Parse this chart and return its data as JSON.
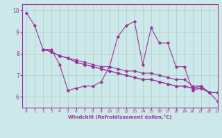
{
  "xlabel": "Windchill (Refroidissement éolien,°C)",
  "xlim": [
    -0.5,
    23
  ],
  "ylim": [
    5.5,
    10.3
  ],
  "xticks": [
    0,
    1,
    2,
    3,
    4,
    5,
    6,
    7,
    8,
    9,
    10,
    11,
    12,
    13,
    14,
    15,
    16,
    17,
    18,
    19,
    20,
    21,
    22,
    23
  ],
  "yticks": [
    6,
    7,
    8,
    9,
    10
  ],
  "bg_color": "#cce8e8",
  "line_color": "#993399",
  "grid_color": "#aacccc",
  "lines": [
    [
      9.9,
      9.3,
      8.2,
      8.2,
      7.5,
      6.3,
      6.4,
      6.5,
      6.5,
      6.7,
      7.4,
      8.8,
      9.3,
      9.5,
      7.5,
      9.2,
      8.5,
      8.5,
      7.4,
      7.4,
      6.3,
      6.4,
      6.2,
      6.2
    ],
    [
      null,
      null,
      8.2,
      8.1,
      7.9,
      7.8,
      7.6,
      7.5,
      7.4,
      7.3,
      7.2,
      7.1,
      7.0,
      6.9,
      6.8,
      6.8,
      6.7,
      6.6,
      6.5,
      6.5,
      6.4,
      6.4,
      6.2,
      6.2
    ],
    [
      null,
      null,
      8.2,
      8.1,
      7.9,
      7.8,
      7.6,
      7.5,
      7.4,
      7.3,
      7.2,
      7.1,
      7.0,
      6.9,
      6.8,
      6.8,
      6.7,
      6.6,
      6.5,
      6.5,
      6.4,
      6.5,
      6.2,
      5.8
    ],
    [
      null,
      null,
      8.2,
      8.1,
      7.9,
      7.8,
      7.7,
      7.6,
      7.5,
      7.4,
      7.4,
      7.3,
      7.2,
      7.2,
      7.1,
      7.1,
      7.0,
      6.9,
      6.8,
      6.8,
      6.5,
      6.5,
      6.2,
      6.2
    ]
  ]
}
